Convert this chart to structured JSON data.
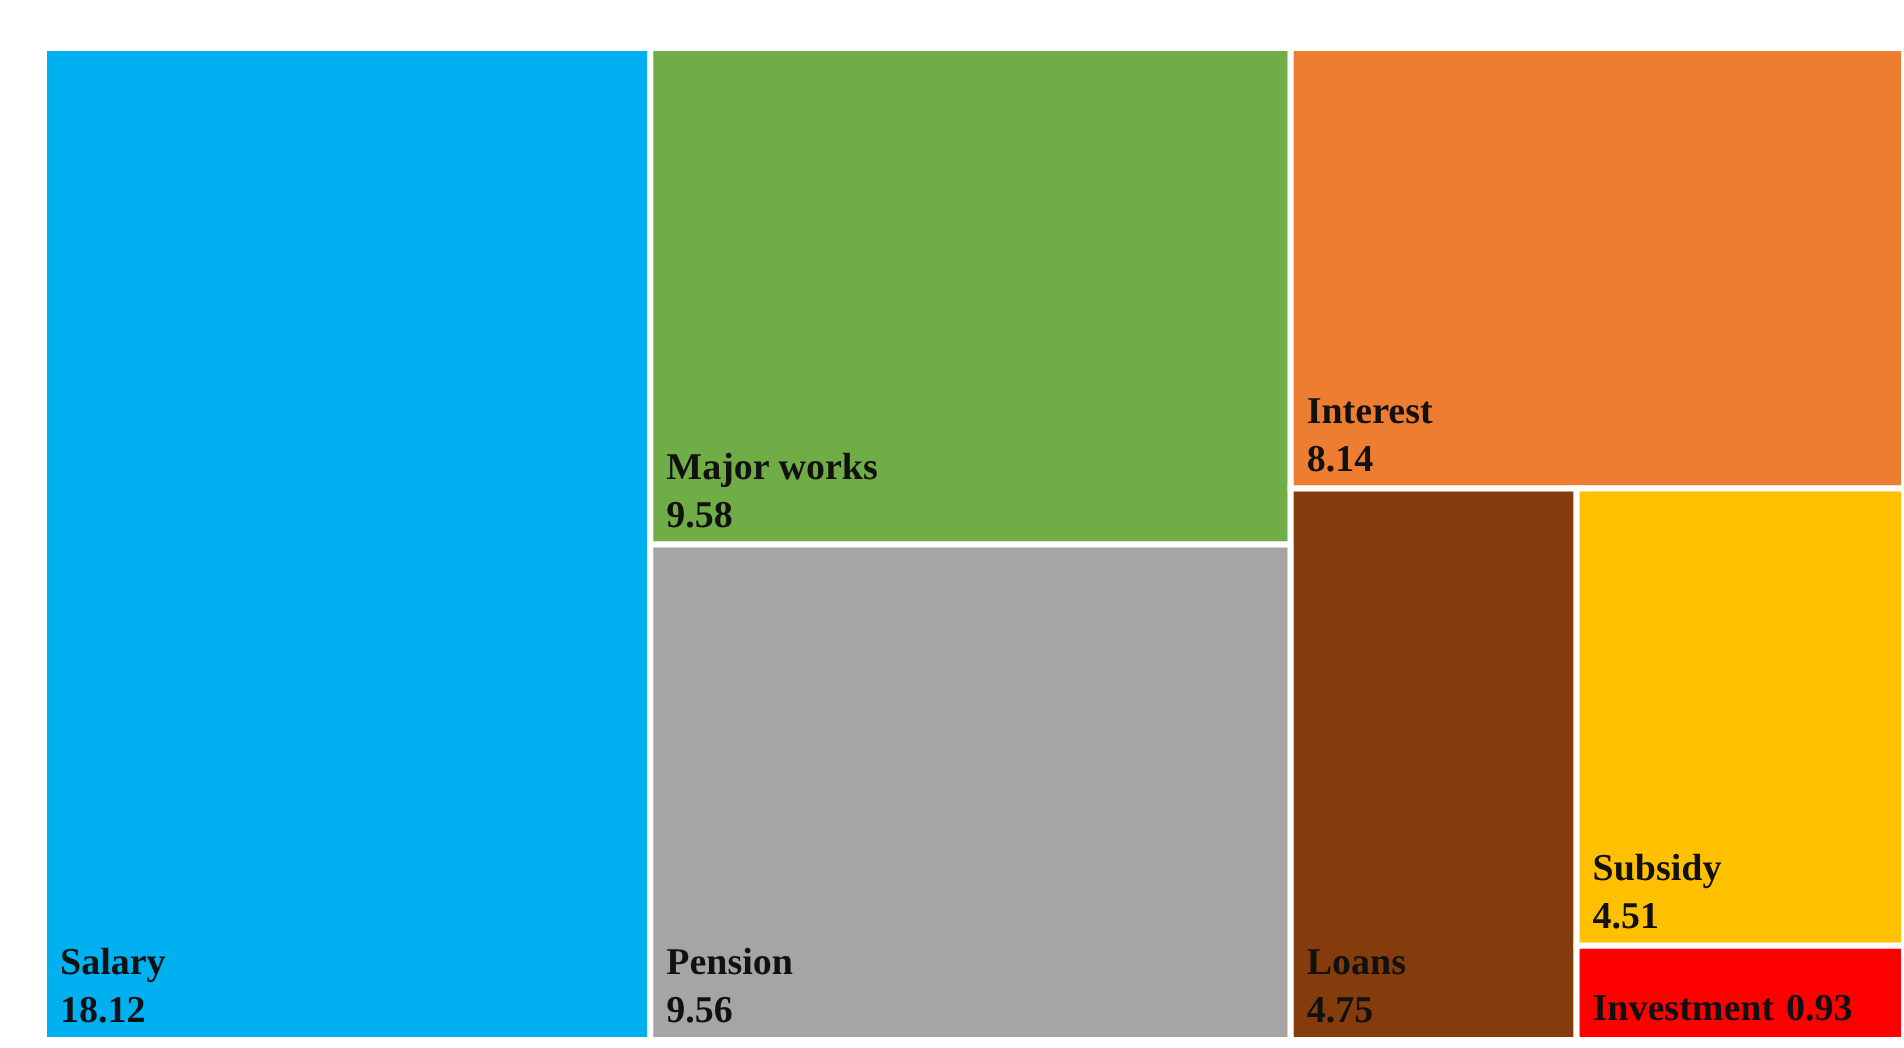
{
  "chart_data": {
    "type": "other",
    "categories": [
      "Salary",
      "Major works",
      "Pension",
      "Interest",
      "Loans",
      "Subsidy",
      "Investment"
    ],
    "values": [
      18.12,
      9.58,
      9.56,
      8.14,
      4.75,
      4.51,
      0.93
    ],
    "colors": [
      "#00b0f0",
      "#70ad47",
      "#a5a5a5",
      "#ed7d31",
      "#843c0c",
      "#ffc000",
      "#ff0000"
    ],
    "data_labels": true
  }
}
